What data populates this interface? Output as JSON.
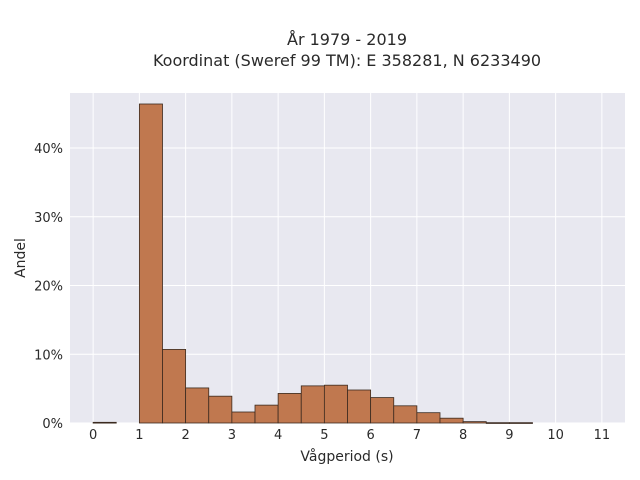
{
  "chart_data": {
    "type": "bar",
    "title_line1": "År 1979 - 2019",
    "title_line2": "Koordinat (Sweref 99 TM): E 358281, N 6233490",
    "xlabel": "Vågperiod (s)",
    "ylabel": "Andel",
    "bin_width": 0.5,
    "bins": [
      {
        "start": 0.0,
        "value": 0.1
      },
      {
        "start": 0.5,
        "value": 0.0
      },
      {
        "start": 1.0,
        "value": 46.4
      },
      {
        "start": 1.5,
        "value": 10.7
      },
      {
        "start": 2.0,
        "value": 5.1
      },
      {
        "start": 2.5,
        "value": 3.9
      },
      {
        "start": 3.0,
        "value": 1.6
      },
      {
        "start": 3.5,
        "value": 2.6
      },
      {
        "start": 4.0,
        "value": 4.3
      },
      {
        "start": 4.5,
        "value": 5.4
      },
      {
        "start": 5.0,
        "value": 5.5
      },
      {
        "start": 5.5,
        "value": 4.8
      },
      {
        "start": 6.0,
        "value": 3.7
      },
      {
        "start": 6.5,
        "value": 2.5
      },
      {
        "start": 7.0,
        "value": 1.5
      },
      {
        "start": 7.5,
        "value": 0.7
      },
      {
        "start": 8.0,
        "value": 0.2
      },
      {
        "start": 8.5,
        "value": 0.05
      },
      {
        "start": 9.0,
        "value": 0.05
      }
    ],
    "xlim": [
      -0.5,
      11.5
    ],
    "ylim": [
      0,
      48
    ],
    "x_ticks": [
      0,
      1,
      2,
      3,
      4,
      5,
      6,
      7,
      8,
      9,
      10,
      11
    ],
    "y_ticks": [
      0,
      10,
      20,
      30,
      40
    ],
    "y_tick_labels": [
      "0%",
      "10%",
      "20%",
      "30%",
      "40%"
    ],
    "grid": true,
    "colors": {
      "bar_fill": "#c0784f",
      "bar_stroke": "#3b2a1f",
      "plot_bg": "#e8e8f0",
      "grid": "#ffffff"
    }
  }
}
